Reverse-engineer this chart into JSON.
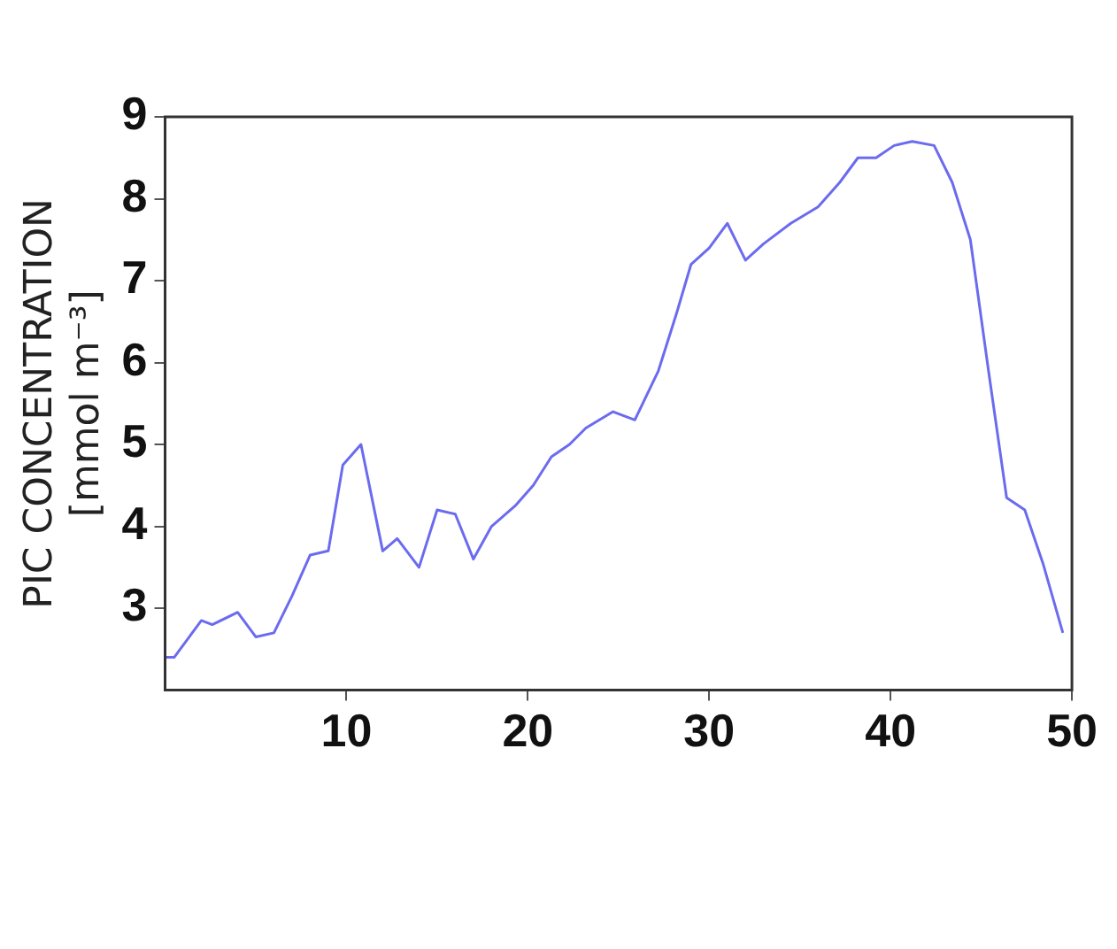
{
  "chart_data": {
    "type": "line",
    "ylabel": "PIC CONCENTRATION\n[mmol m⁻³]",
    "xlim": [
      0,
      50
    ],
    "xticks": [
      10,
      20,
      30,
      40,
      50
    ],
    "ylim": [
      2,
      9
    ],
    "yticks": [
      3,
      4,
      5,
      6,
      7,
      8,
      9
    ],
    "grid": false,
    "legend": false,
    "marker": "none",
    "line_style": "solid",
    "series": [
      {
        "color": "#6b6bf0",
        "x": [
          0,
          0.5,
          2,
          2.6,
          4,
          5,
          6,
          7,
          8,
          9,
          9.8,
          10.8,
          12,
          12.8,
          14,
          15,
          16,
          17,
          18,
          19.3,
          20.3,
          21.3,
          22.3,
          23.2,
          24.7,
          25.9,
          27.2,
          28.2,
          29,
          30,
          31,
          32,
          33,
          34.5,
          36,
          37.2,
          38.2,
          39.2,
          40.2,
          41.2,
          42.4,
          43.4,
          44.4,
          45.4,
          46.4,
          47.4,
          48.4,
          49.5
        ],
        "values": [
          2.4,
          2.4,
          2.85,
          2.8,
          2.95,
          2.65,
          2.7,
          3.15,
          3.65,
          3.7,
          4.75,
          5.0,
          3.7,
          3.85,
          3.5,
          4.2,
          4.15,
          3.6,
          4.0,
          4.25,
          4.5,
          4.85,
          5.0,
          5.2,
          5.4,
          5.3,
          5.9,
          6.6,
          7.2,
          7.4,
          7.7,
          7.25,
          7.45,
          7.7,
          7.9,
          8.2,
          8.5,
          8.5,
          8.65,
          8.7,
          8.65,
          8.2,
          7.5,
          5.9,
          4.35,
          4.2,
          3.55,
          2.7
        ]
      }
    ]
  }
}
